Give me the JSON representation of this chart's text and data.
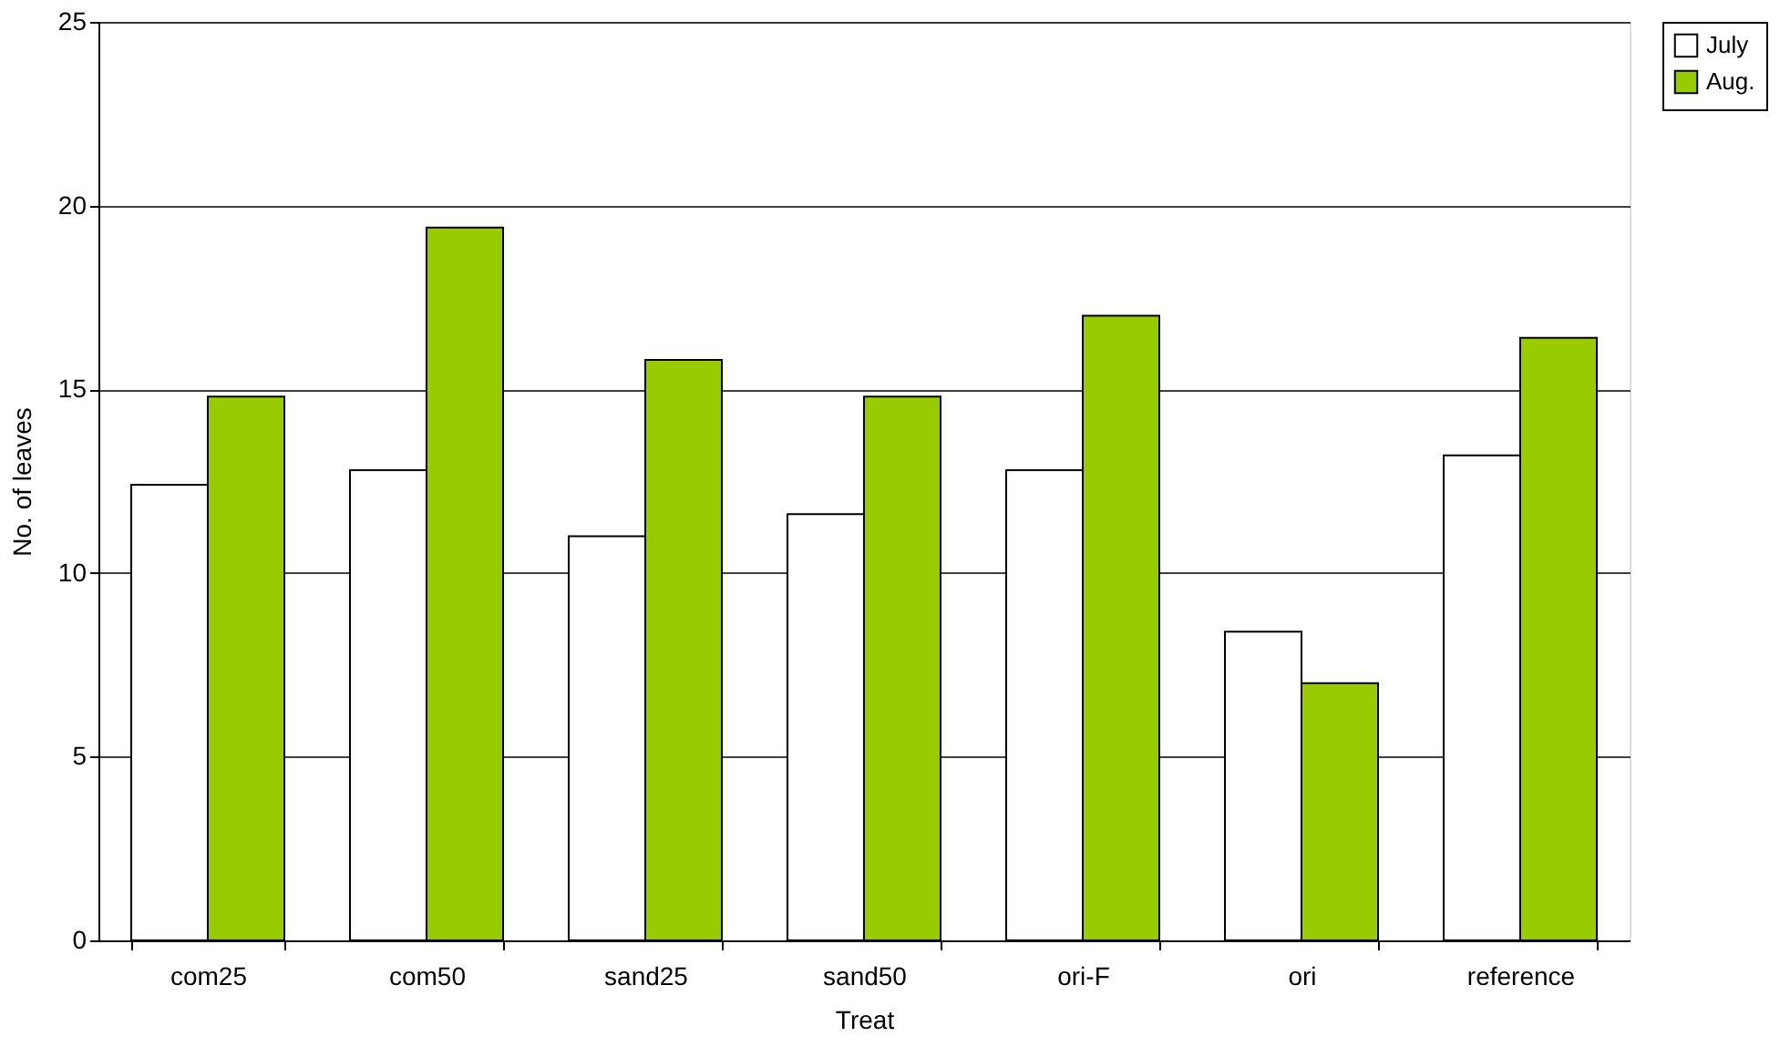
{
  "chart_data": {
    "type": "bar",
    "xlabel": "Treat",
    "ylabel": "No. of leaves",
    "categories": [
      "com25",
      "com50",
      "sand25",
      "sand50",
      "ori-F",
      "ori",
      "reference"
    ],
    "series": [
      {
        "name": "July",
        "color": "#ffffff",
        "values": [
          12.4,
          12.8,
          11.0,
          11.6,
          12.8,
          8.4,
          13.2
        ]
      },
      {
        "name": "Aug.",
        "color": "#99cc00",
        "values": [
          14.8,
          19.4,
          15.8,
          14.8,
          17.0,
          7.0,
          16.4
        ]
      }
    ],
    "ylim": [
      0,
      25
    ],
    "yticks": [
      0,
      5,
      10,
      15,
      20,
      25
    ],
    "grid": "y",
    "legend": "right"
  }
}
